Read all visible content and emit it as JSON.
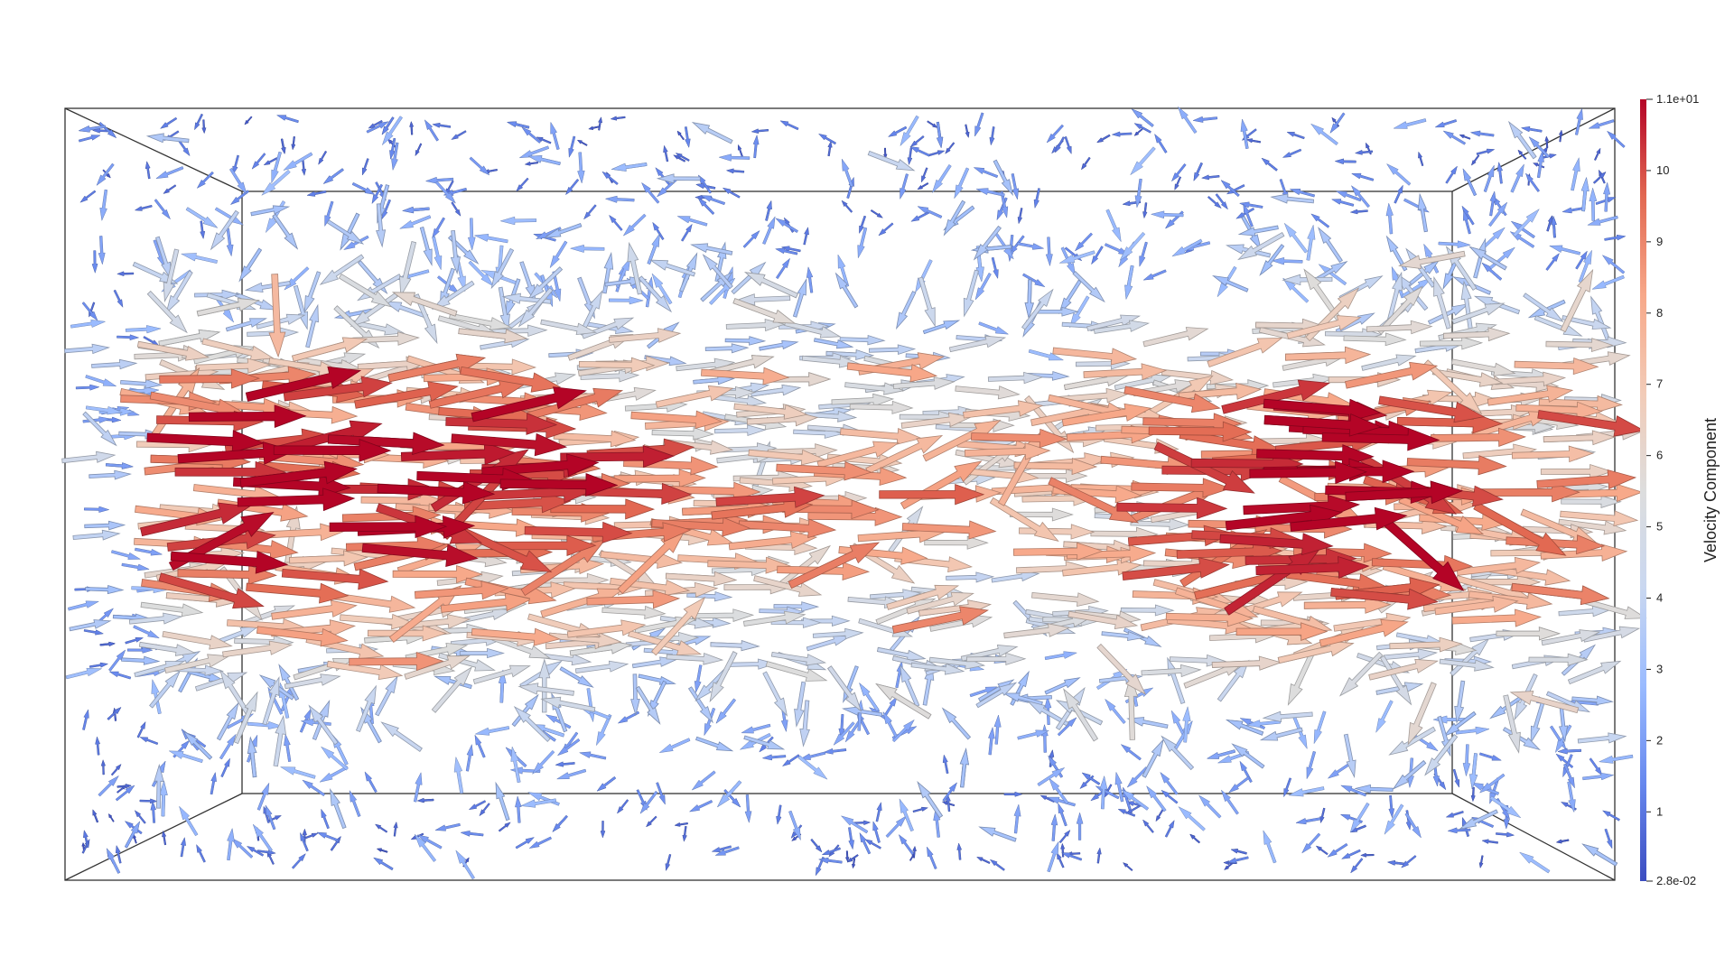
{
  "colorbar": {
    "title": "Velocity Component",
    "min_label": "2.8e-02",
    "max_label": "1.1e+01",
    "min_value": 0.028,
    "max_value": 11,
    "ticks": [
      "1",
      "2",
      "3",
      "4",
      "5",
      "6",
      "7",
      "8",
      "9",
      "10"
    ],
    "tick_values": [
      1,
      2,
      3,
      4,
      5,
      6,
      7,
      8,
      9,
      10
    ],
    "colormap": [
      "#3b4cc0",
      "#6788ee",
      "#9abbff",
      "#c9d7f0",
      "#dddddd",
      "#f2cbb7",
      "#f7a889",
      "#e26952",
      "#b40426"
    ]
  },
  "scene": {
    "type": "3D glyph vector field in bounding box",
    "box_edge_color": "#333333",
    "background": "#ffffff"
  }
}
